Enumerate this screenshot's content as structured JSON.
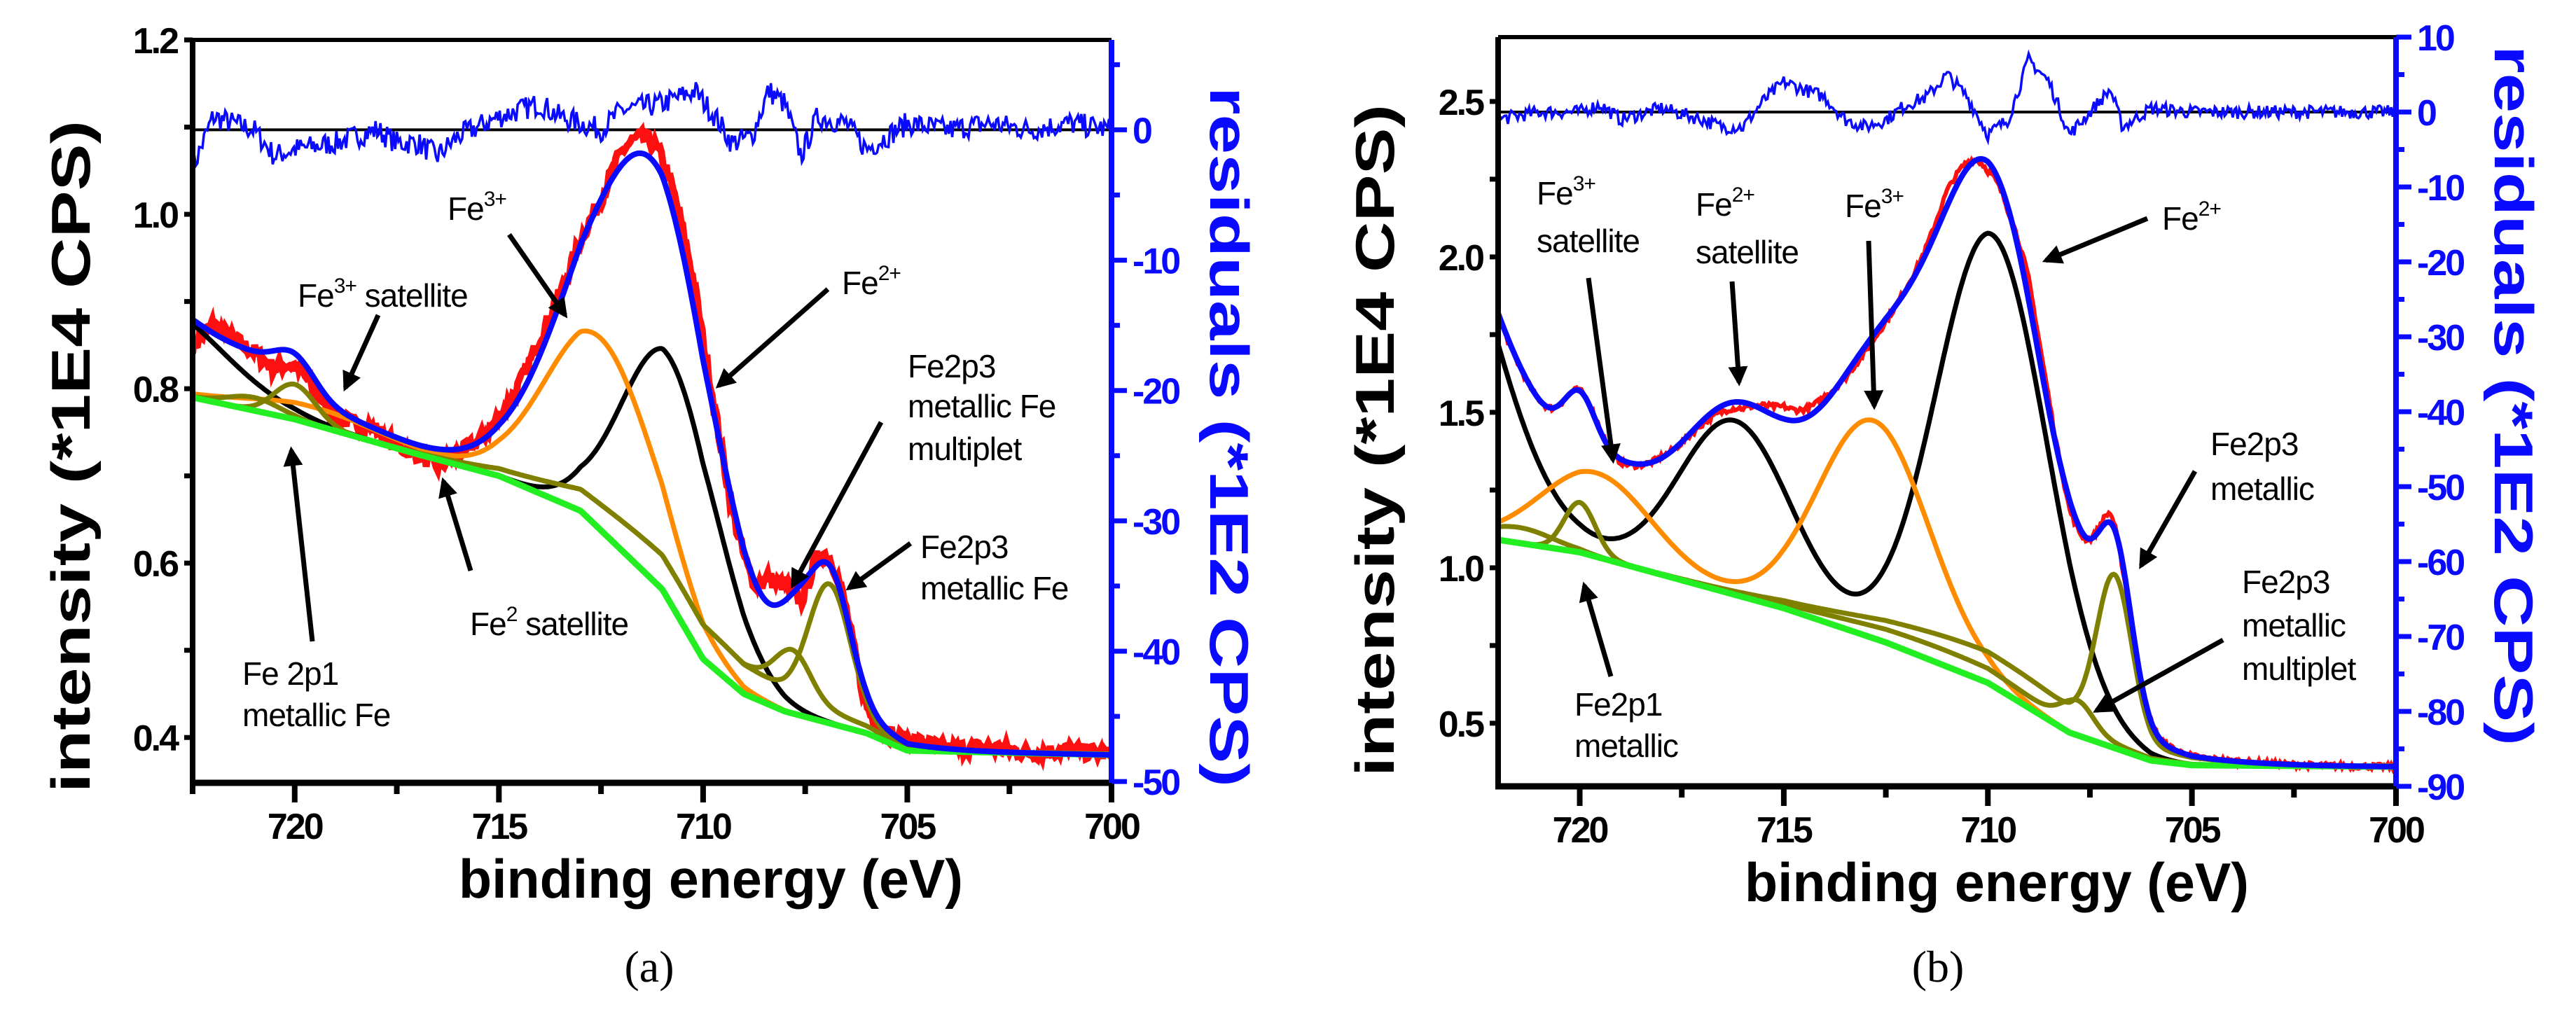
{
  "chart_data": [
    {
      "type": "line",
      "panel_label": "(a)",
      "xlabel": "binding energy (eV)",
      "ylabel": "intensity (*1E4 CPS)",
      "y2label": "residuals (*1E2 CPS)",
      "xlim": [
        722.5,
        700
      ],
      "ylim": [
        0.348,
        1.2
      ],
      "y2lim": [
        -50.1,
        6.9
      ],
      "xticks": [
        "720",
        "715",
        "710",
        "705",
        "700"
      ],
      "yticks": [
        "0.4",
        "0.6",
        "0.8",
        "1.0",
        "1.2"
      ],
      "y2ticks": [
        "0",
        "-10",
        "-20",
        "-30",
        "-40",
        "-50"
      ],
      "colors": {
        "data": "#ff1010",
        "envelope": "#0a0aff",
        "background": "#22ee22",
        "residual": "#0a0aff",
        "zero_line": "#000000"
      },
      "background": [
        [
          722.5,
          0.79
        ],
        [
          720,
          0.765
        ],
        [
          717,
          0.725
        ],
        [
          715,
          0.7
        ],
        [
          713,
          0.66
        ],
        [
          711,
          0.57
        ],
        [
          710,
          0.49
        ],
        [
          709,
          0.45
        ],
        [
          708,
          0.43
        ],
        [
          706,
          0.405
        ],
        [
          705,
          0.385
        ],
        [
          700,
          0.38
        ]
      ],
      "components": [
        {
          "name": "Fe2+ / Fe2+ satellite",
          "color": "#000000",
          "peaks": [
            [
              723.5,
              0.1,
              4
            ],
            [
              710.8,
              0.28,
              2.8
            ]
          ]
        },
        {
          "name": "Fe3+ / Fe3+ satellite",
          "color": "#ff8c00",
          "peaks": [
            [
              719.5,
              0.02,
              4
            ],
            [
              712.5,
              0.22,
              3.2
            ]
          ]
        },
        {
          "name": "metallic Fe (2p1, 2p3)",
          "color": "#808000",
          "peaks": [
            [
              720,
              0.04,
              1.2
            ],
            [
              706.9,
              0.145,
              1.2
            ],
            [
              710.5,
              0.04,
              6
            ]
          ]
        },
        {
          "name": "metallic Fe multiplet",
          "color": "#808000",
          "peaks": [
            [
              721,
              0.015,
              1.5
            ],
            [
              707.8,
              0.05,
              1.0
            ],
            [
              710.5,
              0.04,
              6
            ]
          ]
        }
      ],
      "residuals": [
        [
          722.5,
          -3
        ],
        [
          722,
          1
        ],
        [
          721,
          0
        ],
        [
          720.5,
          -2
        ],
        [
          720,
          -1.5
        ],
        [
          719,
          -1
        ],
        [
          718,
          0
        ],
        [
          717.5,
          -1
        ],
        [
          717,
          -1
        ],
        [
          716.5,
          -2
        ],
        [
          716,
          -0.5
        ],
        [
          715,
          1
        ],
        [
          714,
          2
        ],
        [
          713.5,
          1
        ],
        [
          713,
          0.5
        ],
        [
          712.5,
          0
        ],
        [
          712,
          1.5
        ],
        [
          711,
          2
        ],
        [
          710.2,
          3
        ],
        [
          709.7,
          1
        ],
        [
          709.3,
          -1
        ],
        [
          708.8,
          -0.5
        ],
        [
          708.4,
          3
        ],
        [
          708,
          2
        ],
        [
          707.6,
          -2
        ],
        [
          707.2,
          1
        ],
        [
          706.5,
          0.5
        ],
        [
          706,
          -1.5
        ],
        [
          705.5,
          -0.5
        ],
        [
          705,
          0.5
        ],
        [
          704,
          0
        ],
        [
          703,
          0.5
        ],
        [
          702,
          0
        ],
        [
          701,
          0.5
        ],
        [
          700,
          0
        ]
      ],
      "annotations": [
        {
          "lines": [
            {
              "t": "Fe",
              "sup": "3+",
              "rest": ""
            }
          ]
        },
        {
          "lines": [
            {
              "t": "Fe",
              "sup": "3+",
              "rest": " satellite"
            }
          ]
        },
        {
          "lines": [
            {
              "t": "Fe",
              "sup": "2+",
              "rest": ""
            }
          ]
        },
        {
          "lines": [
            {
              "t": "Fe2p3",
              "sup": "",
              "rest": ""
            },
            {
              "t": "metallic Fe",
              "sup": "",
              "rest": ""
            },
            {
              "t": "multiplet",
              "sup": "",
              "rest": ""
            }
          ]
        },
        {
          "lines": [
            {
              "t": "Fe2p3",
              "sup": "",
              "rest": ""
            },
            {
              "t": "metallic Fe",
              "sup": "",
              "rest": ""
            }
          ]
        },
        {
          "lines": [
            {
              "t": "Fe",
              "sup": "2",
              "rest": " satellite"
            }
          ]
        },
        {
          "lines": [
            {
              "t": "Fe 2p1",
              "sup": "",
              "rest": ""
            },
            {
              "t": "metallic Fe",
              "sup": "",
              "rest": ""
            }
          ]
        }
      ]
    },
    {
      "type": "line",
      "panel_label": "(b)",
      "xlabel": "binding energy (eV)",
      "ylabel": "intensity (*1E4 CPS)",
      "y2label": "residuals (*1E2 CPS)",
      "xlim": [
        722,
        700
      ],
      "ylim": [
        0.297,
        2.707
      ],
      "y2lim": [
        -90,
        10
      ],
      "xticks": [
        "720",
        "715",
        "710",
        "705",
        "700"
      ],
      "yticks": [
        "0.5",
        "1.0",
        "1.5",
        "2.0",
        "2.5"
      ],
      "y2ticks": [
        "10",
        "0",
        "-10",
        "-20",
        "-30",
        "-40",
        "-50",
        "-60",
        "-70",
        "-80",
        "-90"
      ],
      "colors": {
        "data": "#ff1010",
        "envelope": "#0a0aff",
        "background": "#22ee22",
        "residual": "#0a0aff",
        "zero_line": "#000000"
      },
      "background": [
        [
          722,
          1.09
        ],
        [
          720,
          1.05
        ],
        [
          717.5,
          0.96
        ],
        [
          715,
          0.87
        ],
        [
          712.5,
          0.76
        ],
        [
          710,
          0.63
        ],
        [
          708,
          0.47
        ],
        [
          706,
          0.38
        ],
        [
          705,
          0.365
        ],
        [
          700,
          0.36
        ]
      ],
      "components": [
        {
          "name": "Fe2+ / Fe2+ satellite",
          "color": "#000000",
          "peaks": [
            [
              724,
              1.26,
              4
            ],
            [
              716.2,
              0.56,
              3.2
            ],
            [
              709.9,
              1.45,
              3.2
            ]
          ]
        },
        {
          "name": "Fe3+ / Fe3+ satellite",
          "color": "#ff8c00",
          "peaks": [
            [
              719.6,
              0.27,
              3.2
            ],
            [
              712.8,
              0.7,
              3.2
            ]
          ]
        },
        {
          "name": "metallic (2p1, 2p3)",
          "color": "#808000",
          "peaks": [
            [
              720,
              0.16,
              0.9
            ],
            [
              706.9,
              0.5,
              1.0
            ],
            [
              710,
              0.1,
              7
            ]
          ]
        },
        {
          "name": "metallic multiplet",
          "color": "#808000",
          "peaks": [
            [
              721.5,
              0.05,
              2
            ],
            [
              707.8,
              0.09,
              0.9
            ],
            [
              711,
              0.05,
              6
            ]
          ]
        }
      ],
      "residuals": [
        [
          722,
          -1
        ],
        [
          721,
          0
        ],
        [
          720,
          0
        ],
        [
          719.5,
          1
        ],
        [
          719,
          -1
        ],
        [
          718,
          0.5
        ],
        [
          717,
          -1
        ],
        [
          716.5,
          -2
        ],
        [
          716,
          -2
        ],
        [
          715.5,
          1.5
        ],
        [
          715,
          4
        ],
        [
          714.5,
          3
        ],
        [
          714,
          2
        ],
        [
          713.5,
          -1
        ],
        [
          713,
          -2
        ],
        [
          712.5,
          -1
        ],
        [
          712,
          1
        ],
        [
          711.5,
          2
        ],
        [
          711,
          5
        ],
        [
          710.5,
          2
        ],
        [
          710,
          -3
        ],
        [
          709.5,
          -1
        ],
        [
          709,
          7
        ],
        [
          708.5,
          4
        ],
        [
          708,
          -3
        ],
        [
          707.5,
          0
        ],
        [
          707,
          3
        ],
        [
          706.7,
          -2
        ],
        [
          706,
          0.5
        ],
        [
          705,
          0
        ],
        [
          703,
          0
        ],
        [
          700,
          0
        ]
      ],
      "annotations": [
        {
          "lines": [
            {
              "t": "Fe",
              "sup": "3+",
              "rest": ""
            },
            {
              "t": "satellite",
              "sup": "",
              "rest": ""
            }
          ]
        },
        {
          "lines": [
            {
              "t": "Fe",
              "sup": "2+",
              "rest": ""
            },
            {
              "t": "satellite",
              "sup": "",
              "rest": ""
            }
          ]
        },
        {
          "lines": [
            {
              "t": "Fe",
              "sup": "3+",
              "rest": ""
            }
          ]
        },
        {
          "lines": [
            {
              "t": "Fe",
              "sup": "2+",
              "rest": ""
            }
          ]
        },
        {
          "lines": [
            {
              "t": "Fe2p3",
              "sup": "",
              "rest": ""
            },
            {
              "t": "metallic",
              "sup": "",
              "rest": ""
            }
          ]
        },
        {
          "lines": [
            {
              "t": "Fe2p3",
              "sup": "",
              "rest": ""
            },
            {
              "t": "metallic",
              "sup": "",
              "rest": ""
            },
            {
              "t": "multiplet",
              "sup": "",
              "rest": ""
            }
          ]
        },
        {
          "lines": [
            {
              "t": "Fe2p1",
              "sup": "",
              "rest": ""
            },
            {
              "t": "metallic",
              "sup": "",
              "rest": ""
            }
          ]
        }
      ]
    }
  ]
}
